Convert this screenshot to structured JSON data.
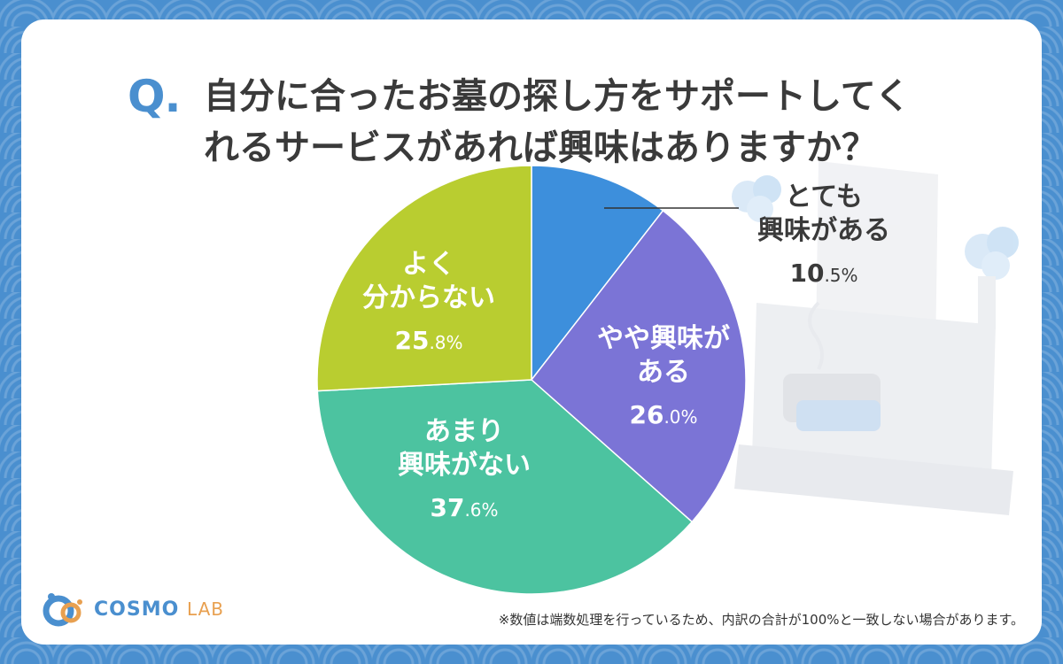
{
  "question": {
    "mark": "Q.",
    "line1": "自分に合ったお墓の探し方をサポートしてく",
    "line2": "れるサービスがあれば興味はありますか？"
  },
  "chart_data": {
    "type": "pie",
    "start_angle_deg": 0,
    "direction": "clockwise",
    "slices": [
      {
        "label_lines": [
          "とても",
          "興味がある"
        ],
        "value": 10.5,
        "value_text": "10.5",
        "unit": "%",
        "color": "#3d8fdc"
      },
      {
        "label_lines": [
          "やや興味が",
          "ある"
        ],
        "value": 26.0,
        "value_text": "26.0",
        "unit": "%",
        "color": "#7b74d6"
      },
      {
        "label_lines": [
          "あまり",
          "興味がない"
        ],
        "value": 37.6,
        "value_text": "37.6",
        "unit": "%",
        "color": "#4cc3a0"
      },
      {
        "label_lines": [
          "よく",
          "分からない"
        ],
        "value": 25.8,
        "value_text": "25.8",
        "unit": "%",
        "color": "#b9cd30"
      }
    ]
  },
  "footnote": "※数値は端数処理を行っているため、内訳の合計が100%と一致しない場合があります。",
  "logo": {
    "name": "COSMO",
    "suffix": "LAB"
  }
}
